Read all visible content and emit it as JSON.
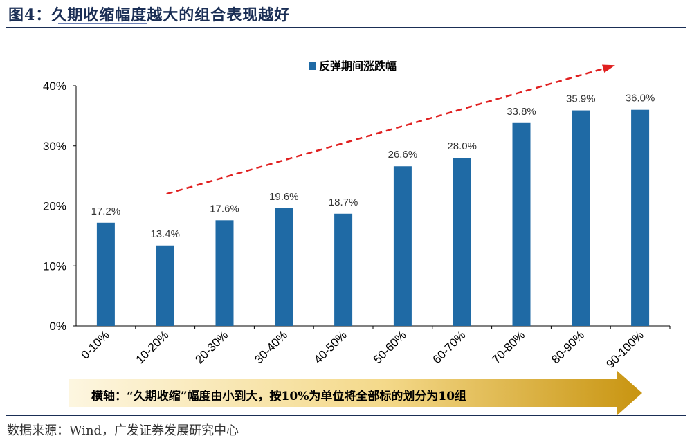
{
  "title": "图4：久期收缩幅度越大的组合表现越好",
  "source": "数据来源：Wind，广发证券发展研究中心",
  "axis_note": "横轴：“久期收缩”幅度由小到大，按10%为单位将全部标的划分为10组",
  "colors": {
    "bar": "#1f6aa5",
    "arrow": "#e02020",
    "title": "#1a2e55",
    "band_left": "#fdf3d6",
    "band_right": "#c89410"
  },
  "chart_data": {
    "type": "bar",
    "title": "",
    "xlabel": "",
    "ylabel": "",
    "categories": [
      "0-10%",
      "10-20%",
      "20-30%",
      "30-40%",
      "40-50%",
      "50-60%",
      "60-70%",
      "70-80%",
      "80-90%",
      "90-100%"
    ],
    "series": [
      {
        "name": "反弹期间涨跌幅",
        "values": [
          17.2,
          13.4,
          17.6,
          19.6,
          18.7,
          26.6,
          28.0,
          33.8,
          35.9,
          36.0
        ]
      }
    ],
    "data_labels": [
      "17.2%",
      "13.4%",
      "17.6%",
      "19.6%",
      "18.7%",
      "26.6%",
      "28.0%",
      "33.8%",
      "35.9%",
      "36.0%"
    ],
    "ylim": [
      0,
      40
    ],
    "yticks": [
      0,
      10,
      20,
      30,
      40
    ],
    "ytick_labels": [
      "0%",
      "10%",
      "20%",
      "30%",
      "40%"
    ],
    "legend_position": "top-center",
    "annotations": [
      "red dashed upward trend arrow"
    ]
  }
}
